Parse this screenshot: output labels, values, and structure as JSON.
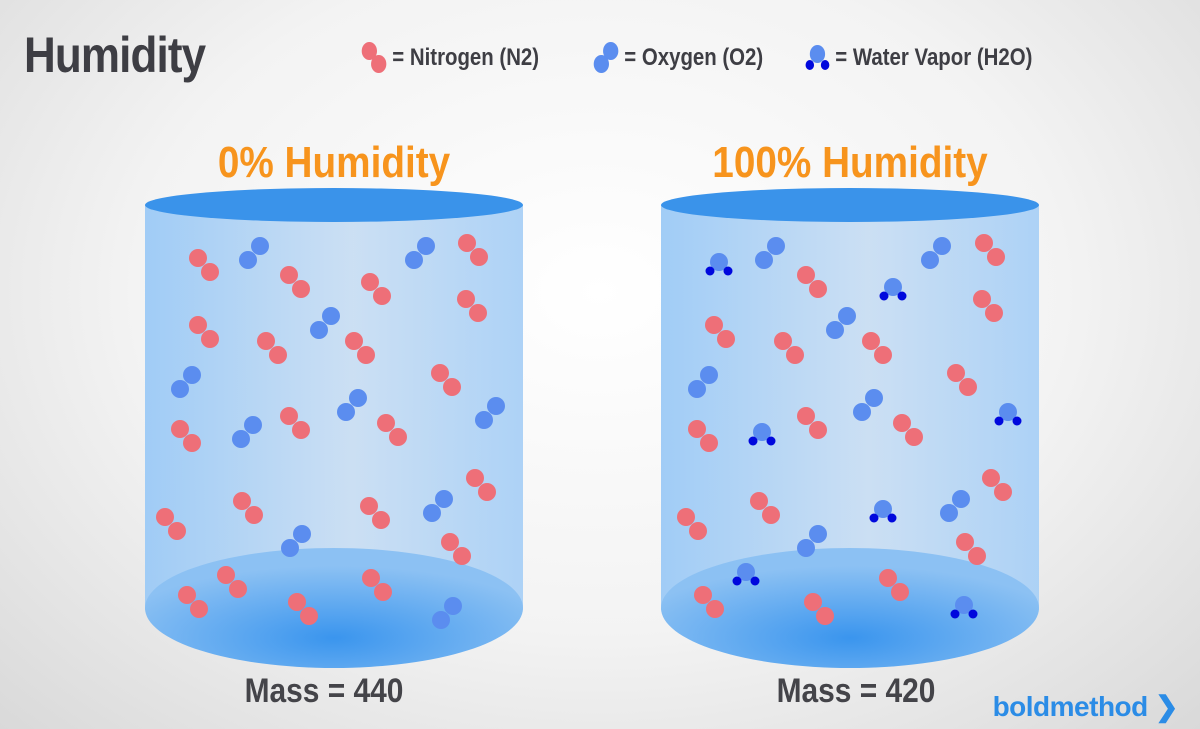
{
  "title": "Humidity",
  "legend": [
    {
      "icon": "nitrogen-molecule-icon",
      "label": "= Nitrogen (N2)"
    },
    {
      "icon": "oxygen-molecule-icon",
      "label": "= Oxygen (O2)"
    },
    {
      "icon": "water-vapor-molecule-icon",
      "label": "= Water Vapor (H2O)"
    }
  ],
  "containers": [
    {
      "heading": "0% Humidity",
      "mass": "Mass = 440"
    },
    {
      "heading": "100% Humidity",
      "mass": "Mass = 420"
    }
  ],
  "logo": "boldmethod ❯",
  "colors": {
    "nitrogen": "#ee6f78",
    "oxygen": "#5b8def",
    "hydrogen": "#0008dd",
    "heading": "#f7941d",
    "logo": "#2b8ce6"
  }
}
